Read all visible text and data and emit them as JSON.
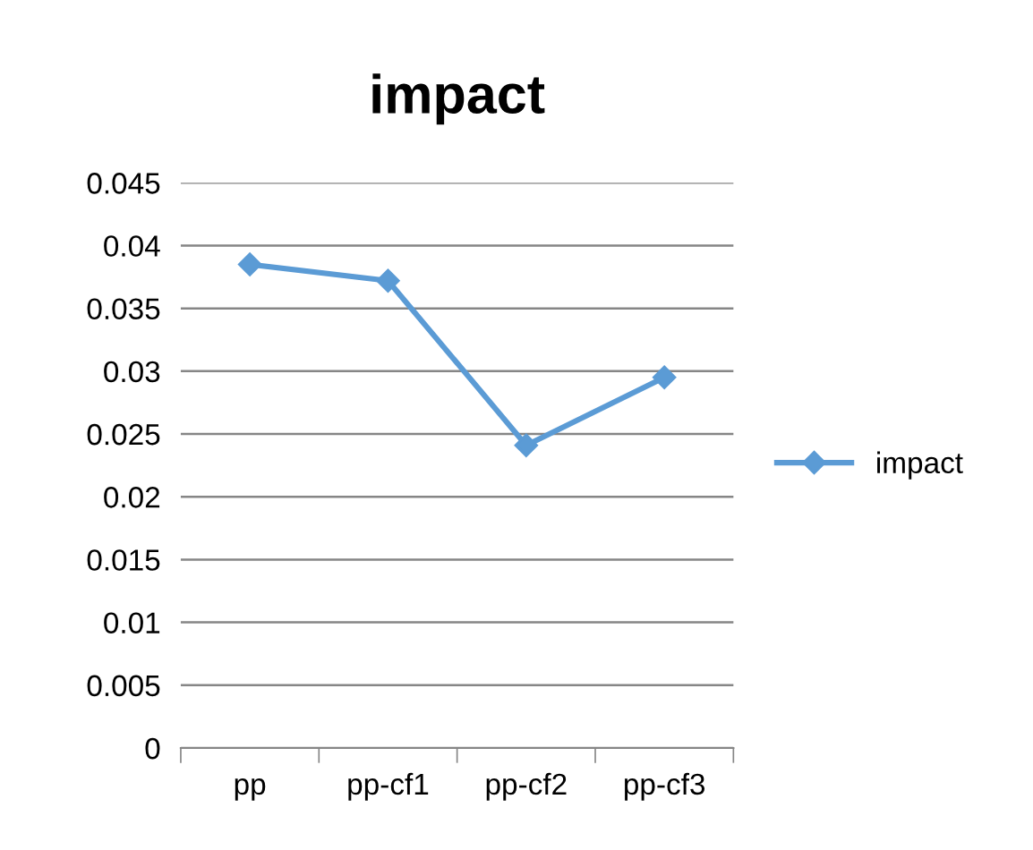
{
  "chart_data": {
    "type": "line",
    "title": "impact",
    "categories": [
      "pp",
      "pp-cf1",
      "pp-cf2",
      "pp-cf3"
    ],
    "series": [
      {
        "name": "impact",
        "color": "#5b9bd5",
        "values": [
          0.0385,
          0.0372,
          0.0241,
          0.0295
        ]
      }
    ],
    "ylim": [
      0,
      0.045
    ],
    "yticks": [
      0,
      0.005,
      0.01,
      0.015,
      0.02,
      0.025,
      0.03,
      0.035,
      0.04,
      0.045
    ],
    "grid": "y",
    "legend": "right",
    "marker": "diamond",
    "line_style": "solid"
  }
}
